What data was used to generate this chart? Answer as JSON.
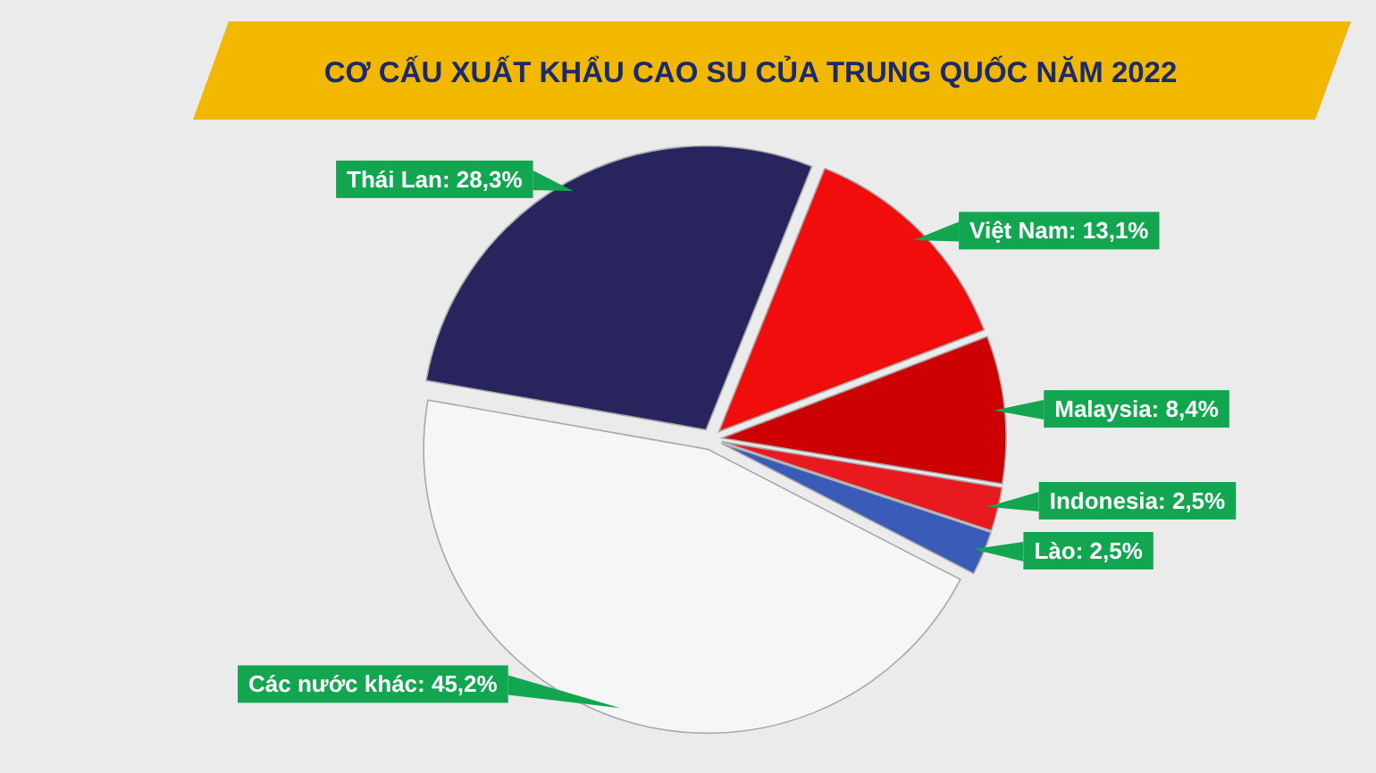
{
  "chart_data": {
    "type": "pie",
    "title": "CƠ CẤU XUẤT KHẨU CAO SU CỦA TRUNG QUỐC NĂM 2022",
    "categories": [
      "Thái Lan",
      "Việt Nam",
      "Malaysia",
      "Indonesia",
      "Lào",
      "Các nước khác"
    ],
    "values": [
      28.3,
      13.1,
      8.4,
      2.5,
      2.5,
      45.2
    ],
    "colors": [
      "#28245e",
      "#f20d0d",
      "#cc0001",
      "#e8191f",
      "#3a5bb8",
      "#f6f6f6"
    ],
    "value_labels": [
      "28,3%",
      "13,1%",
      "8,4%",
      "2,5%",
      "2,5%",
      "45,2%"
    ]
  }
}
